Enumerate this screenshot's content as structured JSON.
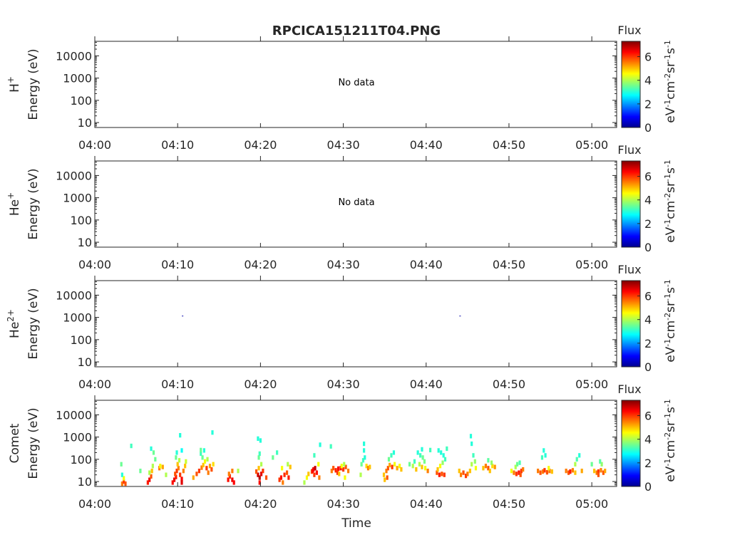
{
  "chart_data": {
    "type": "heatmap",
    "title": "RPCICA151211T04.PNG",
    "xlabel": "Time",
    "x_ticks": [
      "04:00",
      "04:10",
      "04:20",
      "04:30",
      "04:40",
      "04:50",
      "05:00"
    ],
    "x_tick_minutes": [
      0,
      10,
      20,
      30,
      40,
      50,
      60
    ],
    "xlim_minutes": [
      0,
      63
    ],
    "y_ticks": [
      "10",
      "100",
      "1000",
      "10000"
    ],
    "y_tick_values": [
      10,
      100,
      1000,
      10000
    ],
    "ylim": [
      6,
      45000
    ],
    "yscale": "log",
    "colorbar": {
      "label_top": "Flux",
      "unit_label": "eV-1cm-2sr-1s-1",
      "ticks": [
        "0",
        "2",
        "4",
        "6"
      ],
      "tick_values": [
        0,
        2,
        4,
        6
      ],
      "range": [
        0,
        7.3
      ],
      "colormap": "jet"
    },
    "panels": [
      {
        "species_main": "H",
        "species_sup": "+",
        "ylabel": "Energy (eV)",
        "no_data_text": "No data",
        "cells": []
      },
      {
        "species_main": "He",
        "species_sup": "+",
        "ylabel": "Energy (eV)",
        "no_data_text": "No data",
        "cells": []
      },
      {
        "species_main": "He",
        "species_sup": "2+",
        "ylabel": "Energy (eV)",
        "no_data_text": "",
        "cells": [
          [
            10.6,
            1150,
            0.3
          ],
          [
            44.1,
            1150,
            0.3
          ]
        ]
      },
      {
        "species_main": "Comet",
        "species_sup": "",
        "ylabel": "Energy (eV)",
        "no_data_text": "",
        "cells": [
          [
            3.3,
            8,
            5.5
          ],
          [
            3.5,
            10,
            6.0
          ],
          [
            3.7,
            8,
            5.8
          ],
          [
            3.5,
            14,
            4.5
          ],
          [
            3.3,
            20,
            3.0
          ],
          [
            3.2,
            60,
            3.5
          ],
          [
            4.4,
            400,
            3.2
          ],
          [
            5.5,
            30,
            3.5
          ],
          [
            6.4,
            9,
            6.2
          ],
          [
            6.6,
            12,
            6.5
          ],
          [
            6.8,
            17,
            5.8
          ],
          [
            6.6,
            25,
            4.0
          ],
          [
            6.9,
            30,
            5.0
          ],
          [
            7.0,
            50,
            4.0
          ],
          [
            7.1,
            200,
            3.5
          ],
          [
            6.8,
            300,
            3.0
          ],
          [
            7.3,
            100,
            3.5
          ],
          [
            7.8,
            40,
            5.5
          ],
          [
            7.9,
            50,
            4.5
          ],
          [
            8.2,
            45,
            5.2
          ],
          [
            8.6,
            20,
            4.0
          ],
          [
            9.4,
            9,
            6.3
          ],
          [
            9.6,
            12,
            6.5
          ],
          [
            9.8,
            16,
            6.2
          ],
          [
            9.7,
            22,
            5.8
          ],
          [
            9.9,
            30,
            6.0
          ],
          [
            10.1,
            40,
            5.5
          ],
          [
            10.0,
            60,
            5.0
          ],
          [
            10.3,
            20,
            6.0
          ],
          [
            10.5,
            13,
            6.4
          ],
          [
            10.2,
            90,
            4.0
          ],
          [
            9.8,
            120,
            3.5
          ],
          [
            9.9,
            200,
            3.0
          ],
          [
            10.5,
            250,
            2.8
          ],
          [
            10.7,
            30,
            5.5
          ],
          [
            10.9,
            50,
            5.0
          ],
          [
            10.3,
            1200,
            3.0
          ],
          [
            11.0,
            80,
            4.2
          ],
          [
            10.5,
            9,
            6.6
          ],
          [
            11.9,
            15,
            5.2
          ],
          [
            12.3,
            22,
            5.8
          ],
          [
            12.6,
            30,
            6.0
          ],
          [
            12.9,
            42,
            5.5
          ],
          [
            13.1,
            55,
            5.0
          ],
          [
            13.3,
            80,
            4.5
          ],
          [
            13.0,
            120,
            3.5
          ],
          [
            12.8,
            180,
            3.2
          ],
          [
            13.2,
            250,
            3.0
          ],
          [
            13.5,
            40,
            6.0
          ],
          [
            13.7,
            25,
            5.5
          ],
          [
            13.9,
            50,
            5.2
          ],
          [
            14.1,
            35,
            5.8
          ],
          [
            14.3,
            60,
            4.8
          ],
          [
            13.6,
            100,
            4.0
          ],
          [
            12.8,
            260,
            3.5
          ],
          [
            14.2,
            1600,
            3.0
          ],
          [
            16.1,
            12,
            6.3
          ],
          [
            16.3,
            17,
            6.1
          ],
          [
            16.6,
            12,
            6.5
          ],
          [
            16.8,
            9,
            6.4
          ],
          [
            16.2,
            22,
            5.5
          ],
          [
            17.3,
            30,
            4.0
          ],
          [
            16.6,
            30,
            5.5
          ],
          [
            19.7,
            20,
            6.7
          ],
          [
            19.9,
            15,
            6.9
          ],
          [
            20.1,
            22,
            6.6
          ],
          [
            19.5,
            28,
            5.8
          ],
          [
            20.3,
            30,
            6.0
          ],
          [
            19.8,
            40,
            5.0
          ],
          [
            20.1,
            60,
            4.0
          ],
          [
            19.8,
            120,
            3.5
          ],
          [
            19.9,
            180,
            3.2
          ],
          [
            19.7,
            850,
            3.0
          ],
          [
            20.0,
            700,
            3.0
          ],
          [
            19.9,
            9,
            6.3
          ],
          [
            20.7,
            15,
            5.8
          ],
          [
            22.3,
            12,
            6.0
          ],
          [
            22.5,
            15,
            6.3
          ],
          [
            22.9,
            20,
            6.1
          ],
          [
            23.2,
            25,
            5.8
          ],
          [
            23.4,
            15,
            6.2
          ],
          [
            22.7,
            9,
            5.5
          ],
          [
            22.6,
            40,
            4.5
          ],
          [
            23.3,
            60,
            4.0
          ],
          [
            21.5,
            120,
            3.5
          ],
          [
            22.0,
            200,
            3.2
          ],
          [
            23.6,
            45,
            5.0
          ],
          [
            25.6,
            15,
            4.5
          ],
          [
            25.8,
            22,
            5.0
          ],
          [
            26.2,
            28,
            5.8
          ],
          [
            26.4,
            35,
            6.5
          ],
          [
            26.6,
            40,
            6.8
          ],
          [
            26.3,
            30,
            6.4
          ],
          [
            26.5,
            20,
            6.0
          ],
          [
            26.8,
            25,
            6.3
          ],
          [
            27.0,
            60,
            4.5
          ],
          [
            26.5,
            150,
            3.2
          ],
          [
            27.2,
            450,
            3.0
          ],
          [
            25.3,
            9,
            4.0
          ],
          [
            27.1,
            15,
            5.5
          ],
          [
            28.6,
            30,
            5.5
          ],
          [
            28.8,
            40,
            5.8
          ],
          [
            29.1,
            32,
            6.2
          ],
          [
            29.4,
            38,
            6.4
          ],
          [
            29.7,
            40,
            6.3
          ],
          [
            30.0,
            35,
            6.0
          ],
          [
            30.3,
            45,
            5.8
          ],
          [
            30.6,
            30,
            5.5
          ],
          [
            29.3,
            25,
            6.0
          ],
          [
            29.8,
            50,
            4.5
          ],
          [
            30.1,
            60,
            4.0
          ],
          [
            28.5,
            380,
            3.2
          ],
          [
            30.2,
            15,
            4.5
          ],
          [
            29.5,
            22,
            5.0
          ],
          [
            32.2,
            60,
            3.5
          ],
          [
            32.4,
            90,
            3.2
          ],
          [
            32.6,
            120,
            3.0
          ],
          [
            32.5,
            250,
            3.0
          ],
          [
            32.8,
            50,
            4.8
          ],
          [
            33.0,
            40,
            5.5
          ],
          [
            33.2,
            45,
            5.0
          ],
          [
            32.5,
            500,
            3.0
          ],
          [
            32.1,
            20,
            4.0
          ],
          [
            34.9,
            20,
            5.0
          ],
          [
            35.2,
            30,
            5.5
          ],
          [
            35.4,
            40,
            5.8
          ],
          [
            35.6,
            55,
            5.2
          ],
          [
            35.9,
            45,
            6.0
          ],
          [
            36.2,
            60,
            4.5
          ],
          [
            36.5,
            40,
            5.2
          ],
          [
            35.3,
            15,
            5.8
          ],
          [
            35.0,
            12,
            5.0
          ],
          [
            35.8,
            150,
            3.2
          ],
          [
            36.1,
            200,
            3.0
          ],
          [
            36.8,
            50,
            4.5
          ],
          [
            37.0,
            35,
            5.0
          ],
          [
            35.5,
            100,
            3.5
          ],
          [
            38.0,
            60,
            3.5
          ],
          [
            38.4,
            50,
            4.0
          ],
          [
            38.6,
            80,
            3.2
          ],
          [
            39.0,
            200,
            3.0
          ],
          [
            39.3,
            150,
            3.2
          ],
          [
            39.6,
            120,
            3.5
          ],
          [
            39.8,
            80,
            3.6
          ],
          [
            39.2,
            60,
            4.0
          ],
          [
            39.5,
            45,
            5.0
          ],
          [
            38.8,
            35,
            5.0
          ],
          [
            39.9,
            40,
            4.5
          ],
          [
            40.2,
            30,
            5.5
          ],
          [
            39.5,
            280,
            3.0
          ],
          [
            40.5,
            260,
            3.2
          ],
          [
            41.3,
            25,
            5.8
          ],
          [
            41.6,
            20,
            6.2
          ],
          [
            41.9,
            22,
            5.8
          ],
          [
            41.4,
            35,
            5.0
          ],
          [
            41.7,
            50,
            4.5
          ],
          [
            42.0,
            70,
            3.8
          ],
          [
            42.3,
            100,
            3.2
          ],
          [
            42.1,
            150,
            3.0
          ],
          [
            41.8,
            200,
            3.0
          ],
          [
            42.5,
            300,
            3.2
          ],
          [
            41.5,
            250,
            3.0
          ],
          [
            42.2,
            20,
            6.0
          ],
          [
            44.2,
            20,
            5.5
          ],
          [
            44.5,
            25,
            5.8
          ],
          [
            44.8,
            18,
            6.0
          ],
          [
            45.0,
            22,
            5.5
          ],
          [
            45.3,
            30,
            5.0
          ],
          [
            45.5,
            60,
            4.0
          ],
          [
            45.7,
            150,
            3.2
          ],
          [
            45.5,
            500,
            3.0
          ],
          [
            45.4,
            1100,
            3.0
          ],
          [
            44.0,
            30,
            5.0
          ],
          [
            46.0,
            40,
            4.5
          ],
          [
            45.9,
            80,
            3.8
          ],
          [
            46.9,
            40,
            5.0
          ],
          [
            47.2,
            50,
            5.5
          ],
          [
            47.5,
            40,
            5.8
          ],
          [
            47.7,
            30,
            5.0
          ],
          [
            48.0,
            50,
            4.8
          ],
          [
            48.3,
            45,
            5.3
          ],
          [
            47.9,
            70,
            3.8
          ],
          [
            47.5,
            90,
            3.4
          ],
          [
            50.3,
            30,
            4.5
          ],
          [
            50.6,
            25,
            5.5
          ],
          [
            50.9,
            22,
            6.0
          ],
          [
            51.2,
            25,
            6.3
          ],
          [
            51.5,
            30,
            6.0
          ],
          [
            51.7,
            35,
            5.5
          ],
          [
            51.4,
            20,
            5.8
          ],
          [
            50.8,
            45,
            4.0
          ],
          [
            51.0,
            60,
            3.5
          ],
          [
            51.3,
            70,
            3.3
          ],
          [
            53.5,
            30,
            5.5
          ],
          [
            53.8,
            25,
            5.8
          ],
          [
            54.1,
            28,
            5.5
          ],
          [
            54.3,
            32,
            6.0
          ],
          [
            54.6,
            26,
            5.8
          ],
          [
            54.9,
            30,
            5.5
          ],
          [
            54.0,
            120,
            3.2
          ],
          [
            54.4,
            150,
            3.0
          ],
          [
            54.2,
            250,
            3.0
          ],
          [
            54.8,
            40,
            4.5
          ],
          [
            55.2,
            28,
            5.0
          ],
          [
            56.9,
            30,
            5.5
          ],
          [
            57.2,
            25,
            5.8
          ],
          [
            57.4,
            28,
            6.2
          ],
          [
            57.7,
            32,
            5.5
          ],
          [
            58.0,
            25,
            5.0
          ],
          [
            58.2,
            100,
            3.3
          ],
          [
            58.5,
            150,
            3.0
          ],
          [
            58.0,
            60,
            4.0
          ],
          [
            58.8,
            30,
            5.2
          ],
          [
            60.3,
            30,
            5.0
          ],
          [
            60.6,
            25,
            5.5
          ],
          [
            60.8,
            28,
            6.0
          ],
          [
            61.1,
            32,
            5.5
          ],
          [
            61.4,
            25,
            5.8
          ],
          [
            61.6,
            30,
            5.2
          ],
          [
            60.8,
            20,
            5.8
          ],
          [
            61.2,
            60,
            3.8
          ],
          [
            61.0,
            80,
            3.4
          ],
          [
            60.0,
            60,
            3.5
          ]
        ]
      }
    ]
  }
}
